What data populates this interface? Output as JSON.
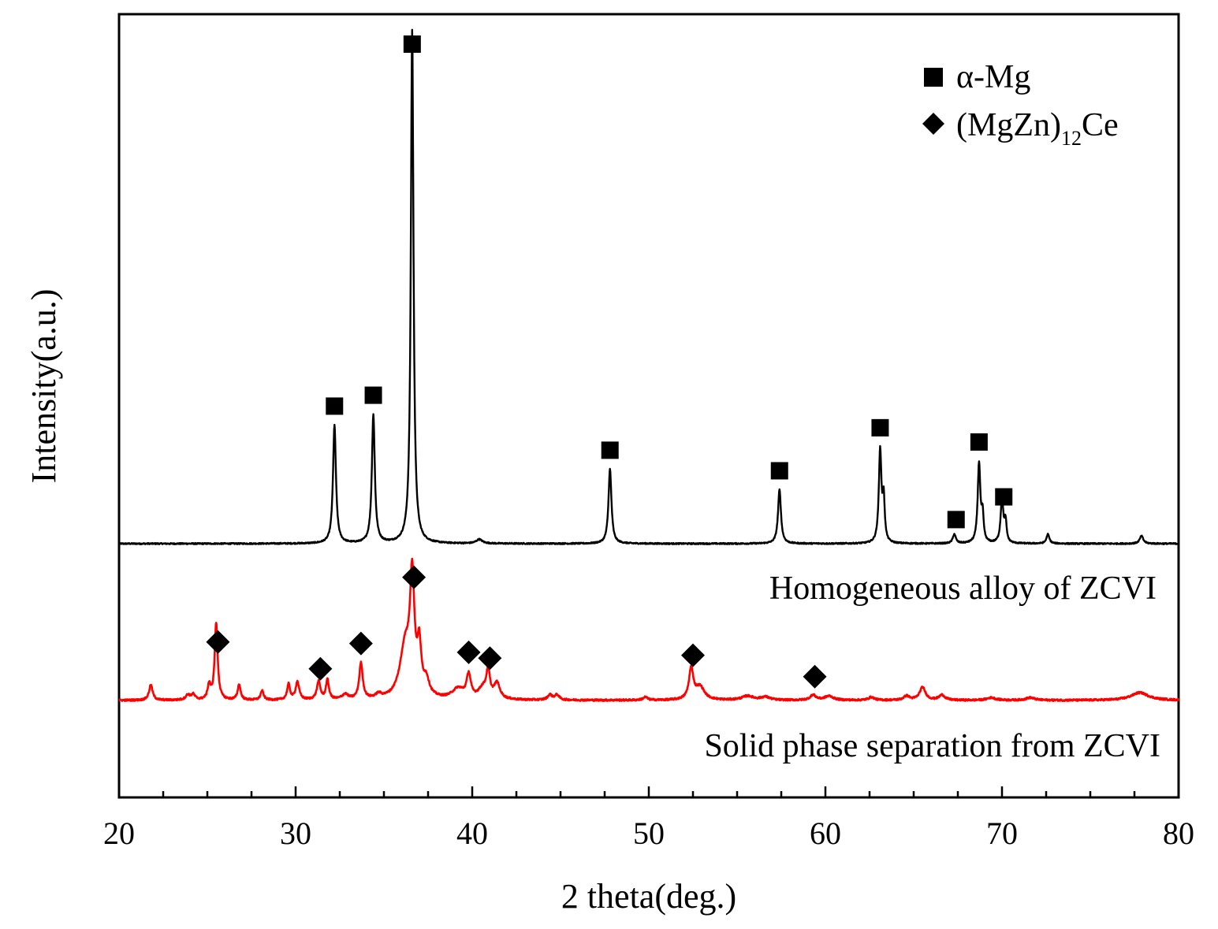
{
  "chart_data": {
    "type": "line",
    "title": "",
    "xlabel": "2 theta(deg.)",
    "ylabel": "Intensity(a.u.)",
    "xlim": [
      20,
      80
    ],
    "xticks": [
      "20",
      "30",
      "40",
      "50",
      "60",
      "70",
      "80"
    ],
    "y_ticks_shown": false,
    "grid": false,
    "legend_position": "top-right",
    "legend": [
      {
        "marker": "square",
        "label": "α-Mg"
      },
      {
        "marker": "diamond",
        "label_main": "(MgZn)",
        "label_sub": "12",
        "label_tail": "Ce"
      }
    ],
    "series": [
      {
        "name": "Homogeneous alloy of ZCVI",
        "color": "#000000",
        "baseline": 0.0,
        "peaks": [
          {
            "x": 32.2,
            "height": 0.23,
            "width": 0.1
          },
          {
            "x": 34.4,
            "height": 0.25,
            "width": 0.1
          },
          {
            "x": 36.6,
            "height": 1.0,
            "width": 0.09
          },
          {
            "x": 40.4,
            "height": 0.008,
            "width": 0.2
          },
          {
            "x": 47.8,
            "height": 0.145,
            "width": 0.1
          },
          {
            "x": 57.4,
            "height": 0.105,
            "width": 0.1
          },
          {
            "x": 63.1,
            "height": 0.18,
            "width": 0.09
          },
          {
            "x": 63.3,
            "height": 0.08,
            "width": 0.07
          },
          {
            "x": 67.3,
            "height": 0.018,
            "width": 0.1
          },
          {
            "x": 68.7,
            "height": 0.155,
            "width": 0.09
          },
          {
            "x": 68.9,
            "height": 0.05,
            "width": 0.07
          },
          {
            "x": 70.0,
            "height": 0.09,
            "width": 0.09
          },
          {
            "x": 70.2,
            "height": 0.04,
            "width": 0.07
          },
          {
            "x": 72.6,
            "height": 0.018,
            "width": 0.1
          },
          {
            "x": 77.9,
            "height": 0.015,
            "width": 0.12
          }
        ],
        "markers": [
          {
            "x": 32.2,
            "marker": "square"
          },
          {
            "x": 34.4,
            "marker": "square"
          },
          {
            "x": 36.6,
            "marker": "square"
          },
          {
            "x": 47.8,
            "marker": "square"
          },
          {
            "x": 57.4,
            "marker": "square"
          },
          {
            "x": 63.1,
            "marker": "square"
          },
          {
            "x": 67.4,
            "marker": "square"
          },
          {
            "x": 68.7,
            "marker": "square"
          },
          {
            "x": 70.1,
            "marker": "square"
          }
        ]
      },
      {
        "name": "Solid phase separation from ZCVI",
        "color": "#ff0000",
        "baseline": -0.305,
        "peaks": [
          {
            "x": 21.8,
            "height": 0.03,
            "width": 0.12
          },
          {
            "x": 23.9,
            "height": 0.01,
            "width": 0.15
          },
          {
            "x": 24.2,
            "height": 0.01,
            "width": 0.12
          },
          {
            "x": 25.1,
            "height": 0.028,
            "width": 0.1
          },
          {
            "x": 25.5,
            "height": 0.15,
            "width": 0.1
          },
          {
            "x": 26.8,
            "height": 0.03,
            "width": 0.1
          },
          {
            "x": 28.1,
            "height": 0.018,
            "width": 0.1
          },
          {
            "x": 29.6,
            "height": 0.03,
            "width": 0.1
          },
          {
            "x": 30.1,
            "height": 0.035,
            "width": 0.12
          },
          {
            "x": 31.3,
            "height": 0.035,
            "width": 0.12
          },
          {
            "x": 31.8,
            "height": 0.038,
            "width": 0.1
          },
          {
            "x": 32.8,
            "height": 0.01,
            "width": 0.2
          },
          {
            "x": 33.7,
            "height": 0.07,
            "width": 0.12
          },
          {
            "x": 34.7,
            "height": 0.008,
            "width": 0.2
          },
          {
            "x": 36.2,
            "height": 0.1,
            "width": 0.35
          },
          {
            "x": 36.6,
            "height": 0.22,
            "width": 0.15
          },
          {
            "x": 37.0,
            "height": 0.09,
            "width": 0.13
          },
          {
            "x": 37.4,
            "height": 0.03,
            "width": 0.2
          },
          {
            "x": 39.2,
            "height": 0.02,
            "width": 0.4
          },
          {
            "x": 39.8,
            "height": 0.045,
            "width": 0.14
          },
          {
            "x": 40.6,
            "height": 0.02,
            "width": 0.3
          },
          {
            "x": 40.9,
            "height": 0.05,
            "width": 0.12
          },
          {
            "x": 41.4,
            "height": 0.03,
            "width": 0.2
          },
          {
            "x": 44.4,
            "height": 0.01,
            "width": 0.15
          },
          {
            "x": 44.8,
            "height": 0.01,
            "width": 0.15
          },
          {
            "x": 49.8,
            "height": 0.006,
            "width": 0.15
          },
          {
            "x": 52.4,
            "height": 0.06,
            "width": 0.15
          },
          {
            "x": 52.9,
            "height": 0.025,
            "width": 0.3
          },
          {
            "x": 55.6,
            "height": 0.008,
            "width": 0.4
          },
          {
            "x": 56.6,
            "height": 0.006,
            "width": 0.3
          },
          {
            "x": 59.3,
            "height": 0.01,
            "width": 0.2
          },
          {
            "x": 60.2,
            "height": 0.008,
            "width": 0.3
          },
          {
            "x": 62.6,
            "height": 0.006,
            "width": 0.2
          },
          {
            "x": 64.6,
            "height": 0.008,
            "width": 0.2
          },
          {
            "x": 65.5,
            "height": 0.025,
            "width": 0.2
          },
          {
            "x": 66.6,
            "height": 0.01,
            "width": 0.2
          },
          {
            "x": 69.4,
            "height": 0.005,
            "width": 0.3
          },
          {
            "x": 71.6,
            "height": 0.005,
            "width": 0.3
          },
          {
            "x": 77.8,
            "height": 0.015,
            "width": 0.6
          }
        ],
        "markers": [
          {
            "x": 25.6,
            "marker": "diamond"
          },
          {
            "x": 31.4,
            "marker": "diamond"
          },
          {
            "x": 33.7,
            "marker": "diamond"
          },
          {
            "x": 36.7,
            "marker": "diamond"
          },
          {
            "x": 39.8,
            "marker": "diamond"
          },
          {
            "x": 41.0,
            "marker": "diamond"
          },
          {
            "x": 52.5,
            "marker": "diamond"
          },
          {
            "x": 59.4,
            "marker": "diamond"
          }
        ]
      }
    ]
  }
}
